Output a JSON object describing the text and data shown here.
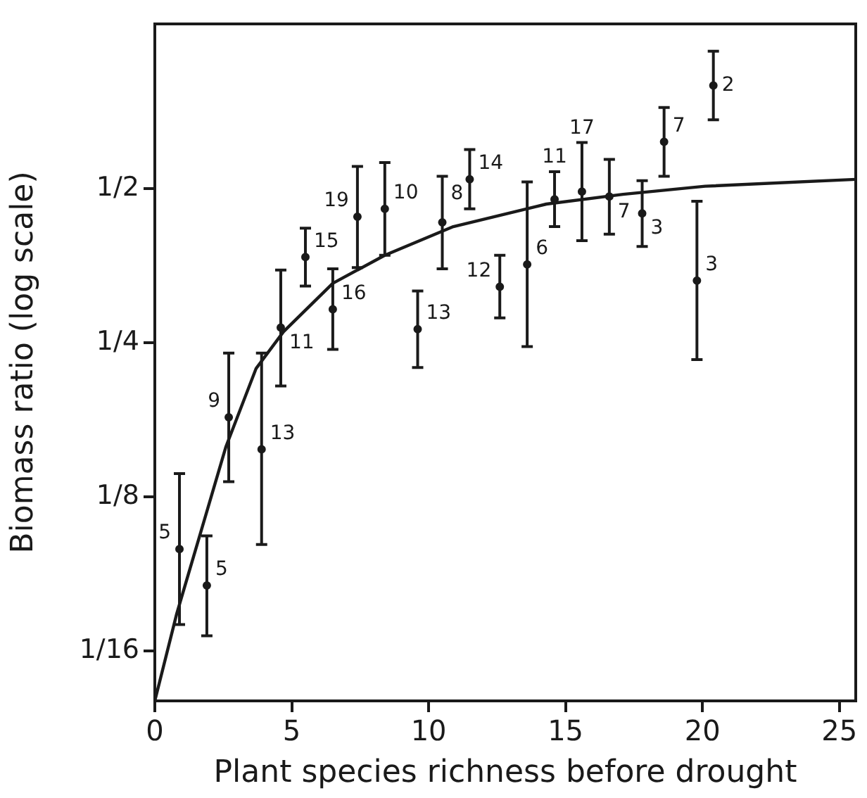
{
  "chart_data": {
    "type": "scatter",
    "xlabel": "Plant species richness before drought",
    "ylabel": "Biomass ratio (log scale)",
    "log": "y",
    "grid": false,
    "legend": false,
    "marker": "circle",
    "xlim": [
      0,
      25.6
    ],
    "xticks": [
      0,
      5,
      10,
      15,
      20,
      25
    ],
    "ylim": [
      0.05,
      1.05
    ],
    "yticks": [
      {
        "value": 0.0625,
        "label": "1/16"
      },
      {
        "value": 0.125,
        "label": "1/8"
      },
      {
        "value": 0.25,
        "label": "1/4"
      },
      {
        "value": 0.5,
        "label": "1/2"
      }
    ],
    "series": [
      {
        "color": "#1a1a1a",
        "x": [
          0.9,
          1.9,
          2.7,
          3.9,
          4.6,
          5.5,
          6.5,
          7.4,
          8.4,
          9.6,
          10.5,
          11.5,
          12.6,
          13.6,
          14.6,
          15.6,
          16.6,
          17.8,
          18.6,
          19.8,
          20.4
        ],
        "values": [
          0.099,
          0.084,
          0.179,
          0.155,
          0.268,
          0.368,
          0.291,
          0.441,
          0.457,
          0.266,
          0.43,
          0.522,
          0.322,
          0.356,
          0.477,
          0.494,
          0.483,
          0.448,
          0.618,
          0.331,
          0.796
        ],
        "errors": [
          [
            0.0705,
            0.139
          ],
          [
            0.067,
            0.105
          ],
          [
            0.134,
            0.239
          ],
          [
            0.101,
            0.239
          ],
          [
            0.206,
            0.347
          ],
          [
            0.323,
            0.419
          ],
          [
            0.243,
            0.349
          ],
          [
            0.351,
            0.553
          ],
          [
            0.371,
            0.563
          ],
          [
            0.224,
            0.316
          ],
          [
            0.349,
            0.529
          ],
          [
            0.457,
            0.597
          ],
          [
            0.28,
            0.371
          ],
          [
            0.246,
            0.516
          ],
          [
            0.422,
            0.54
          ],
          [
            0.396,
            0.616
          ],
          [
            0.408,
            0.571
          ],
          [
            0.386,
            0.519
          ],
          [
            0.529,
            0.721
          ],
          [
            0.232,
            0.473
          ],
          [
            0.682,
            0.929
          ]
        ]
      },
      {
        "type": "line",
        "color": "#1a1a1a",
        "marker": "none",
        "line_style": "solid",
        "x": [
          0,
          0.8,
          2.6,
          3.7,
          4.7,
          6.5,
          8.4,
          10.9,
          14.3,
          17.1,
          20.1,
          25.6
        ],
        "values": [
          0.05,
          0.074,
          0.157,
          0.223,
          0.263,
          0.327,
          0.371,
          0.422,
          0.467,
          0.488,
          0.506,
          0.522
        ]
      }
    ],
    "annotations": [
      {
        "text": "5",
        "x": 0.9,
        "y": 0.099
      },
      {
        "text": "5",
        "x": 1.9,
        "y": 0.084
      },
      {
        "text": "9",
        "x": 2.7,
        "y": 0.179
      },
      {
        "text": "13",
        "x": 3.9,
        "y": 0.155
      },
      {
        "text": "11",
        "x": 4.6,
        "y": 0.268
      },
      {
        "text": "15",
        "x": 5.5,
        "y": 0.368
      },
      {
        "text": "16",
        "x": 6.5,
        "y": 0.291
      },
      {
        "text": "19",
        "x": 7.4,
        "y": 0.441
      },
      {
        "text": "10",
        "x": 8.4,
        "y": 0.457
      },
      {
        "text": "13",
        "x": 9.6,
        "y": 0.266
      },
      {
        "text": "8",
        "x": 10.5,
        "y": 0.43
      },
      {
        "text": "14",
        "x": 11.5,
        "y": 0.522
      },
      {
        "text": "12",
        "x": 12.6,
        "y": 0.322
      },
      {
        "text": "6",
        "x": 13.6,
        "y": 0.356
      },
      {
        "text": "11",
        "x": 14.6,
        "y": 0.477
      },
      {
        "text": "17",
        "x": 15.6,
        "y": 0.494
      },
      {
        "text": "7",
        "x": 16.6,
        "y": 0.483
      },
      {
        "text": "3",
        "x": 17.8,
        "y": 0.448
      },
      {
        "text": "7",
        "x": 18.6,
        "y": 0.618
      },
      {
        "text": "3",
        "x": 19.8,
        "y": 0.331
      },
      {
        "text": "2",
        "x": 20.4,
        "y": 0.796
      }
    ]
  }
}
